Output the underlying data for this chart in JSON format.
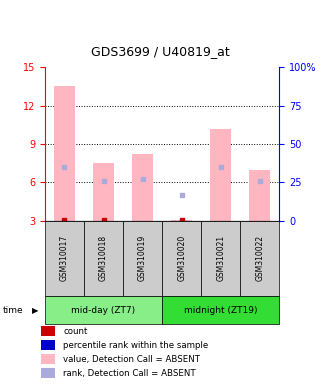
{
  "title": "GDS3699 / U40819_at",
  "samples": [
    "GSM310017",
    "GSM310018",
    "GSM310019",
    "GSM310020",
    "GSM310021",
    "GSM310022"
  ],
  "groups": [
    {
      "label": "mid-day (ZT7)",
      "color": "#88EE88"
    },
    {
      "label": "midnight (ZT19)",
      "color": "#33DD33"
    }
  ],
  "left_ylim": [
    3,
    15
  ],
  "left_yticks": [
    3,
    6,
    9,
    12,
    15
  ],
  "right_ylim": [
    0,
    100
  ],
  "right_yticks": [
    0,
    25,
    50,
    75,
    100
  ],
  "right_yticklabels": [
    "0",
    "25",
    "50",
    "75",
    "100%"
  ],
  "pink_bar_tops": [
    13.5,
    7.5,
    8.2,
    3.05,
    10.2,
    7.0
  ],
  "pink_bar_bottom": 3.0,
  "blue_sq_values": [
    7.2,
    6.1,
    6.3,
    5.0,
    7.2,
    6.1
  ],
  "red_dot_values": [
    3.05,
    3.05,
    null,
    3.05,
    null,
    null
  ],
  "pink_bar_color": "#FFB6C1",
  "blue_sq_color": "#AAAADD",
  "red_dot_color": "#CC0000",
  "bar_width": 0.55,
  "grid_yticks": [
    6,
    9,
    12
  ],
  "label_area_color": "#CCCCCC",
  "legend_items": [
    {
      "color": "#CC0000",
      "label": "count"
    },
    {
      "color": "#0000CC",
      "label": "percentile rank within the sample"
    },
    {
      "color": "#FFB6C1",
      "label": "value, Detection Call = ABSENT"
    },
    {
      "color": "#AAAADD",
      "label": "rank, Detection Call = ABSENT"
    }
  ]
}
